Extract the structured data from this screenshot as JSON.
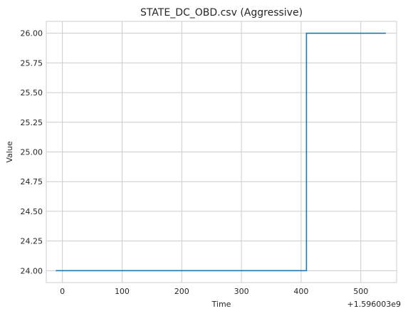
{
  "chart_data": {
    "type": "line",
    "title": "STATE_DC_OBD.csv (Aggressive)",
    "xlabel": "Time",
    "ylabel": "Value",
    "x_offset_label": "+1.596003e9",
    "xlim": [
      -27,
      560
    ],
    "ylim": [
      23.9,
      26.1
    ],
    "xticks": [
      0,
      100,
      200,
      300,
      400,
      500
    ],
    "yticks": [
      24.0,
      24.25,
      24.5,
      24.75,
      25.0,
      25.25,
      25.5,
      25.75,
      26.0
    ],
    "ytick_labels": [
      "24.00",
      "24.25",
      "24.50",
      "24.75",
      "25.00",
      "25.25",
      "25.50",
      "25.75",
      "26.00"
    ],
    "grid": true,
    "line_color": "#1f77b4",
    "series": [
      {
        "x": [
          -11,
          409,
          409,
          542
        ],
        "values": [
          24.0,
          24.0,
          26.0,
          26.0
        ]
      }
    ]
  }
}
